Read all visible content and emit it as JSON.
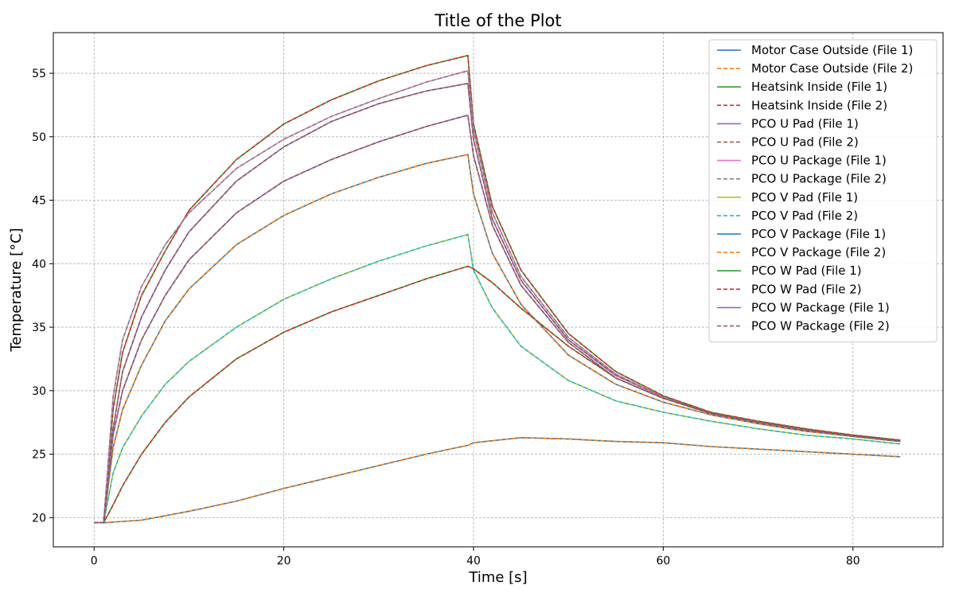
{
  "chart_data": {
    "type": "line",
    "title": "Title of the Plot",
    "xlabel": "Time [s]",
    "ylabel": "Temperature [°C]",
    "xlim": [
      -4.3,
      89.5
    ],
    "ylim": [
      17.7,
      58.2
    ],
    "xticks": [
      0,
      20,
      40,
      60,
      80
    ],
    "yticks": [
      20,
      25,
      30,
      35,
      40,
      45,
      50,
      55
    ],
    "grid": true,
    "legend": "top-right",
    "series": [
      {
        "name": "Motor Case Outside (File 1)",
        "color": "#1f77b4",
        "dash": "solid",
        "x": [
          0,
          1,
          5,
          10,
          15,
          20,
          25,
          30,
          35,
          39.4,
          40,
          45,
          50,
          55,
          60,
          65,
          70,
          75,
          80,
          85
        ],
        "y": [
          19.6,
          19.6,
          19.8,
          20.5,
          21.3,
          22.3,
          23.2,
          24.1,
          25.0,
          25.7,
          25.9,
          26.3,
          26.2,
          26.0,
          25.9,
          25.6,
          25.4,
          25.2,
          25.0,
          24.8
        ]
      },
      {
        "name": "Motor Case Outside (File 2)",
        "color": "#ff7f0e",
        "dash": "dashed",
        "x": [
          0,
          1,
          5,
          10,
          15,
          20,
          25,
          30,
          35,
          39.4,
          40,
          45,
          50,
          55,
          60,
          65,
          70,
          75,
          80,
          85
        ],
        "y": [
          19.6,
          19.6,
          19.8,
          20.5,
          21.3,
          22.3,
          23.2,
          24.1,
          25.0,
          25.7,
          25.9,
          26.3,
          26.2,
          26.0,
          25.9,
          25.6,
          25.4,
          25.2,
          25.0,
          24.8
        ]
      },
      {
        "name": "Heatsink Inside (File 1)",
        "color": "#2ca02c",
        "dash": "solid",
        "x": [
          0,
          1,
          2,
          3,
          5,
          7.5,
          10,
          15,
          20,
          25,
          30,
          35,
          39.4,
          40,
          42,
          45,
          50,
          55,
          60,
          65,
          70,
          75,
          80,
          85
        ],
        "y": [
          19.6,
          19.6,
          28.5,
          33.0,
          37.5,
          41.0,
          44.2,
          48.2,
          51.0,
          52.9,
          54.4,
          55.6,
          56.4,
          51.0,
          44.5,
          39.5,
          34.5,
          31.5,
          29.6,
          28.3,
          27.5,
          26.9,
          26.5,
          26.1
        ]
      },
      {
        "name": "Heatsink Inside (File 2)",
        "color": "#d62728",
        "dash": "dashed",
        "x": [
          0,
          1,
          2,
          3,
          5,
          7.5,
          10,
          15,
          20,
          25,
          30,
          35,
          39.4,
          40,
          42,
          45,
          50,
          55,
          60,
          65,
          70,
          75,
          80,
          85
        ],
        "y": [
          19.6,
          19.6,
          28.5,
          33.0,
          37.5,
          41.0,
          44.2,
          48.2,
          51.0,
          52.9,
          54.4,
          55.6,
          56.4,
          51.0,
          44.5,
          39.5,
          34.5,
          31.5,
          29.6,
          28.3,
          27.5,
          26.9,
          26.5,
          26.1
        ]
      },
      {
        "name": "PCO U Pad (File 1)",
        "color": "#9467bd",
        "dash": "solid",
        "x": [
          0,
          1,
          2,
          3,
          5,
          7.5,
          10,
          15,
          20,
          25,
          30,
          35,
          39.4,
          40,
          42,
          45,
          50,
          55,
          60,
          65,
          70,
          75,
          80,
          85
        ],
        "y": [
          19.6,
          19.6,
          27.0,
          31.5,
          35.8,
          39.5,
          42.5,
          46.5,
          49.2,
          51.2,
          52.6,
          53.6,
          54.2,
          49.8,
          43.5,
          38.7,
          34.0,
          31.2,
          29.5,
          28.2,
          27.5,
          26.9,
          26.4,
          26.0
        ]
      },
      {
        "name": "PCO U Pad (File 2)",
        "color": "#8c564b",
        "dash": "dashed",
        "x": [
          0,
          1,
          2,
          3,
          5,
          7.5,
          10,
          15,
          20,
          25,
          30,
          35,
          39.4,
          40,
          42,
          45,
          50,
          55,
          60,
          65,
          70,
          75,
          80,
          85
        ],
        "y": [
          19.6,
          19.6,
          27.0,
          31.5,
          35.8,
          39.5,
          42.5,
          46.5,
          49.2,
          51.2,
          52.6,
          53.6,
          54.2,
          49.8,
          43.5,
          38.7,
          34.0,
          31.2,
          29.5,
          28.2,
          27.5,
          26.9,
          26.4,
          26.0
        ]
      },
      {
        "name": "PCO U Package (File 1)",
        "color": "#e377c2",
        "dash": "solid",
        "x": [
          0,
          1,
          2,
          3,
          5,
          7.5,
          10,
          15,
          20,
          25,
          30,
          35,
          39.4,
          40,
          42,
          45,
          50,
          55,
          60,
          65,
          70,
          75,
          80,
          85
        ],
        "y": [
          19.6,
          19.6,
          29.5,
          34.0,
          38.2,
          41.5,
          44.0,
          47.5,
          49.8,
          51.6,
          53.0,
          54.3,
          55.2,
          50.5,
          44.0,
          39.0,
          34.2,
          31.3,
          29.5,
          28.2,
          27.5,
          26.9,
          26.4,
          26.0
        ]
      },
      {
        "name": "PCO U Package (File 2)",
        "color": "#7f7f7f",
        "dash": "dashed",
        "x": [
          0,
          1,
          2,
          3,
          5,
          7.5,
          10,
          15,
          20,
          25,
          30,
          35,
          39.4,
          40,
          42,
          45,
          50,
          55,
          60,
          65,
          70,
          75,
          80,
          85
        ],
        "y": [
          19.6,
          19.6,
          29.5,
          34.0,
          38.2,
          41.5,
          44.0,
          47.5,
          49.8,
          51.6,
          53.0,
          54.3,
          55.2,
          50.5,
          44.0,
          39.0,
          34.2,
          31.3,
          29.5,
          28.2,
          27.5,
          26.9,
          26.4,
          26.0
        ]
      },
      {
        "name": "PCO V Pad (File 1)",
        "color": "#bcbd22",
        "dash": "solid",
        "x": [
          0,
          1,
          2,
          3,
          5,
          7.5,
          10,
          15,
          20,
          25,
          30,
          35,
          39.4,
          40,
          42,
          45,
          50,
          55,
          60,
          65,
          70,
          75,
          80,
          85
        ],
        "y": [
          19.6,
          19.6,
          23.5,
          25.5,
          28.0,
          30.5,
          32.3,
          35.0,
          37.2,
          38.8,
          40.2,
          41.4,
          42.3,
          39.5,
          36.5,
          33.5,
          30.8,
          29.2,
          28.3,
          27.6,
          27.0,
          26.5,
          26.2,
          25.8
        ]
      },
      {
        "name": "PCO V Pad (File 2)",
        "color": "#17becf",
        "dash": "dashed",
        "x": [
          0,
          1,
          2,
          3,
          5,
          7.5,
          10,
          15,
          20,
          25,
          30,
          35,
          39.4,
          40,
          42,
          45,
          50,
          55,
          60,
          65,
          70,
          75,
          80,
          85
        ],
        "y": [
          19.6,
          19.6,
          23.5,
          25.5,
          28.0,
          30.5,
          32.3,
          35.0,
          37.2,
          38.8,
          40.2,
          41.4,
          42.3,
          39.5,
          36.5,
          33.5,
          30.8,
          29.2,
          28.3,
          27.6,
          27.0,
          26.5,
          26.2,
          25.8
        ]
      },
      {
        "name": "PCO V Package (File 1)",
        "color": "#1f77b4",
        "dash": "solid",
        "x": [
          0,
          1,
          2,
          3,
          5,
          7.5,
          10,
          15,
          20,
          25,
          30,
          35,
          39.4,
          40,
          42,
          45,
          50,
          55,
          60,
          65,
          70,
          75,
          80,
          85
        ],
        "y": [
          19.6,
          19.6,
          25.5,
          28.5,
          32.0,
          35.5,
          38.0,
          41.5,
          43.8,
          45.5,
          46.8,
          47.9,
          48.6,
          45.5,
          40.8,
          36.8,
          32.8,
          30.5,
          29.1,
          28.1,
          27.4,
          26.8,
          26.4,
          26.0
        ]
      },
      {
        "name": "PCO V Package (File 2)",
        "color": "#ff7f0e",
        "dash": "dashed",
        "x": [
          0,
          1,
          2,
          3,
          5,
          7.5,
          10,
          15,
          20,
          25,
          30,
          35,
          39.4,
          40,
          42,
          45,
          50,
          55,
          60,
          65,
          70,
          75,
          80,
          85
        ],
        "y": [
          19.6,
          19.6,
          25.5,
          28.5,
          32.0,
          35.5,
          38.0,
          41.5,
          43.8,
          45.5,
          46.8,
          47.9,
          48.6,
          45.5,
          40.8,
          36.8,
          32.8,
          30.5,
          29.1,
          28.1,
          27.4,
          26.8,
          26.4,
          26.0
        ]
      },
      {
        "name": "PCO W Pad (File 1)",
        "color": "#2ca02c",
        "dash": "solid",
        "x": [
          0,
          1,
          2,
          3,
          5,
          7.5,
          10,
          15,
          20,
          25,
          30,
          35,
          39.4,
          40,
          42,
          45,
          50,
          55,
          60,
          65,
          70,
          75,
          80,
          85
        ],
        "y": [
          19.6,
          19.6,
          21.0,
          22.5,
          25.0,
          27.5,
          29.5,
          32.5,
          34.6,
          36.2,
          37.5,
          38.8,
          39.8,
          39.6,
          38.5,
          36.5,
          33.5,
          31.0,
          29.4,
          28.3,
          27.6,
          27.0,
          26.5,
          26.1
        ]
      },
      {
        "name": "PCO W Pad (File 2)",
        "color": "#d62728",
        "dash": "dashed",
        "x": [
          0,
          1,
          2,
          3,
          5,
          7.5,
          10,
          15,
          20,
          25,
          30,
          35,
          39.4,
          40,
          42,
          45,
          50,
          55,
          60,
          65,
          70,
          75,
          80,
          85
        ],
        "y": [
          19.6,
          19.6,
          21.0,
          22.5,
          25.0,
          27.5,
          29.5,
          32.5,
          34.6,
          36.2,
          37.5,
          38.8,
          39.8,
          39.6,
          38.5,
          36.5,
          33.5,
          31.0,
          29.4,
          28.3,
          27.6,
          27.0,
          26.5,
          26.1
        ]
      },
      {
        "name": "PCO W Package (File 1)",
        "color": "#9467bd",
        "dash": "solid",
        "x": [
          0,
          1,
          2,
          3,
          5,
          7.5,
          10,
          15,
          20,
          25,
          30,
          35,
          39.4,
          40,
          42,
          45,
          50,
          55,
          60,
          65,
          70,
          75,
          80,
          85
        ],
        "y": [
          19.6,
          19.6,
          26.5,
          30.0,
          34.0,
          37.5,
          40.3,
          44.0,
          46.5,
          48.2,
          49.6,
          50.8,
          51.7,
          48.5,
          43.0,
          38.3,
          33.8,
          31.0,
          29.4,
          28.2,
          27.5,
          26.9,
          26.4,
          26.0
        ]
      },
      {
        "name": "PCO W Package (File 2)",
        "color": "#8c564b",
        "dash": "dashed",
        "x": [
          0,
          1,
          2,
          3,
          5,
          7.5,
          10,
          15,
          20,
          25,
          30,
          35,
          39.4,
          40,
          42,
          45,
          50,
          55,
          60,
          65,
          70,
          75,
          80,
          85
        ],
        "y": [
          19.6,
          19.6,
          26.5,
          30.0,
          34.0,
          37.5,
          40.3,
          44.0,
          46.5,
          48.2,
          49.6,
          50.8,
          51.7,
          48.5,
          43.0,
          38.3,
          33.8,
          31.0,
          29.4,
          28.2,
          27.5,
          26.9,
          26.4,
          26.0
        ]
      }
    ]
  }
}
